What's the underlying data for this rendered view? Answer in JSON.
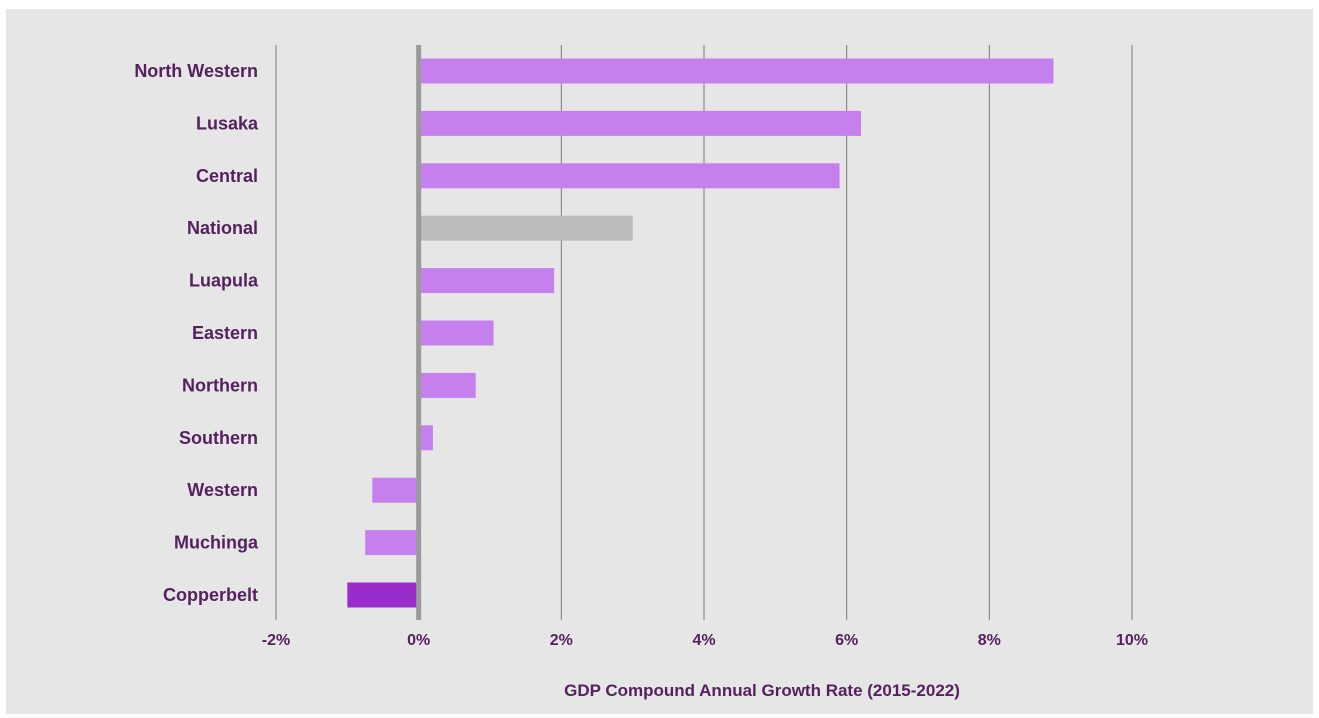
{
  "chart_data": {
    "type": "bar",
    "orientation": "horizontal",
    "title": "",
    "xlabel": "GDP Compound Annual Growth Rate (2015-2022)",
    "ylabel": "",
    "xlim": [
      -2,
      10
    ],
    "xticks": [
      -2,
      0,
      2,
      4,
      6,
      8,
      10
    ],
    "xtick_labels": [
      "-2%",
      "0%",
      "2%",
      "4%",
      "6%",
      "8%",
      "10%"
    ],
    "grid": true,
    "categories": [
      "North Western",
      "Lusaka",
      "Central",
      "National",
      "Luapula",
      "Eastern",
      "Northern",
      "Southern",
      "Western",
      "Muchinga",
      "Copperbelt"
    ],
    "values": [
      8.9,
      6.2,
      5.9,
      3.0,
      1.9,
      1.05,
      0.8,
      0.2,
      -0.65,
      -0.75,
      -1.0
    ],
    "bar_colors": [
      "#c680ee",
      "#c680ee",
      "#c680ee",
      "#bcbcbc",
      "#c680ee",
      "#c680ee",
      "#c680ee",
      "#c680ee",
      "#c680ee",
      "#c680ee",
      "#9a2ccc"
    ],
    "colors": {
      "background": "#e6e6e6",
      "gridline": "#7a7a7a",
      "zero_line": "#9a9a9a",
      "label_text": "#56215f"
    }
  }
}
